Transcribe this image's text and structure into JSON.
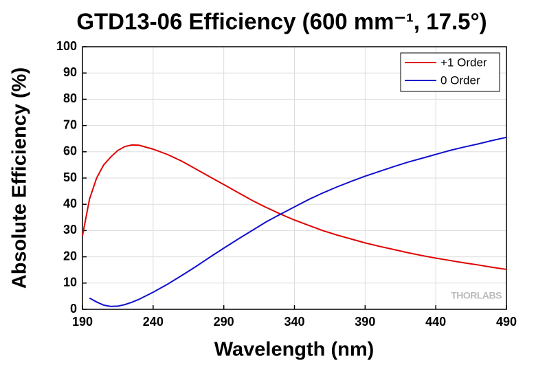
{
  "chart_data": {
    "type": "line",
    "title": "GTD13-06 Efficiency (600 mm⁻¹, 17.5°)",
    "xlabel": "Wavelength (nm)",
    "ylabel": "Absolute Efficiency (%)",
    "watermark": "THORLABS",
    "x": [
      190,
      195,
      200,
      205,
      210,
      215,
      220,
      225,
      230,
      240,
      250,
      260,
      270,
      280,
      290,
      300,
      310,
      320,
      330,
      340,
      350,
      360,
      370,
      380,
      390,
      400,
      410,
      420,
      430,
      440,
      450,
      460,
      470,
      480,
      490
    ],
    "series": [
      {
        "name": "+1 Order",
        "color": "#e00000",
        "values": [
          28,
          42,
          50,
          55,
          58,
          60.5,
          62,
          62.6,
          62.5,
          61,
          59,
          56.5,
          53.5,
          50.5,
          47.5,
          44.5,
          41.5,
          38.8,
          36.3,
          34,
          32,
          30,
          28.3,
          26.8,
          25.3,
          24,
          22.8,
          21.6,
          20.5,
          19.5,
          18.6,
          17.7,
          16.9,
          16,
          15.2
        ]
      },
      {
        "name": "0 Order",
        "color": "#1010cc",
        "values": [
          null,
          4.3,
          2.8,
          1.6,
          1.1,
          1.2,
          1.8,
          2.7,
          3.8,
          6.5,
          9.5,
          12.8,
          16.2,
          19.8,
          23.3,
          26.7,
          30,
          33.3,
          36.2,
          39,
          41.8,
          44.3,
          46.6,
          48.7,
          50.7,
          52.5,
          54.3,
          56,
          57.5,
          59,
          60.5,
          61.8,
          63,
          64.3,
          65.5
        ]
      }
    ],
    "xlim": [
      190,
      490
    ],
    "xticks": [
      190,
      240,
      290,
      340,
      390,
      440,
      490
    ],
    "ylim": [
      0,
      100
    ],
    "yticks": [
      0,
      10,
      20,
      30,
      40,
      50,
      60,
      70,
      80,
      90,
      100
    ],
    "grid": true,
    "legend": "upper right"
  }
}
